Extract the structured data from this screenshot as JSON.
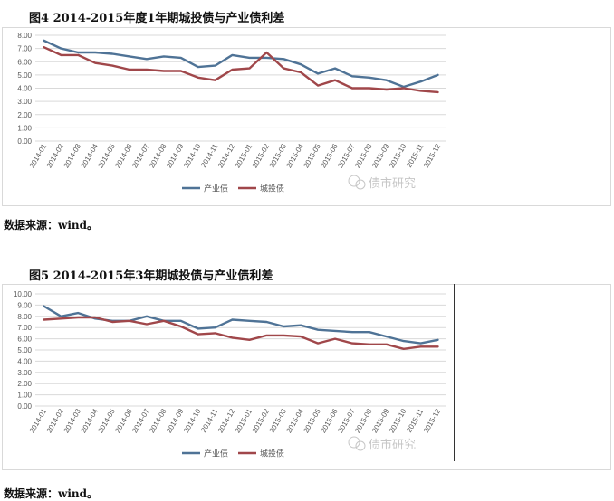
{
  "figures": [
    {
      "title": "图4 2014-2015年度1年期城投债与产业债利差",
      "source": "数据来源：wind。"
    },
    {
      "title": "图5 2014-2015年3年期城投债与产业债利差",
      "source": "数据来源：wind。"
    }
  ],
  "watermark": "债市研究",
  "colors": {
    "industrial": "#4f7396",
    "urban": "#a0474a",
    "grid": "#d9d9d9",
    "axis_text": "#595959"
  },
  "chart_data": [
    {
      "type": "line",
      "title": "图4 2014-2015年度1年期城投债与产业债利差",
      "categories": [
        "2014-01",
        "2014-02",
        "2014-03",
        "2014-04",
        "2014-05",
        "2014-06",
        "2014-07",
        "2014-08",
        "2014-09",
        "2014-10",
        "2014-11",
        "2014-12",
        "2015-01",
        "2015-02",
        "2015-03",
        "2015-04",
        "2015-05",
        "2015-06",
        "2015-07",
        "2015-08",
        "2015-09",
        "2015-10",
        "2015-11",
        "2015-12"
      ],
      "y_ticks": [
        "0.00",
        "1.00",
        "2.00",
        "3.00",
        "4.00",
        "5.00",
        "6.00",
        "7.00",
        "8.00"
      ],
      "ylim": [
        0,
        8
      ],
      "grid": true,
      "legend_position": "bottom",
      "series": [
        {
          "name": "产业债",
          "values": [
            7.6,
            7.0,
            6.7,
            6.7,
            6.6,
            6.4,
            6.2,
            6.4,
            6.3,
            5.6,
            5.7,
            6.5,
            6.3,
            6.3,
            6.2,
            5.8,
            5.1,
            5.5,
            4.9,
            4.8,
            4.6,
            4.1,
            4.5,
            5.0
          ]
        },
        {
          "name": "城投债",
          "values": [
            7.1,
            6.5,
            6.5,
            5.9,
            5.7,
            5.4,
            5.4,
            5.3,
            5.3,
            4.8,
            4.6,
            5.4,
            5.5,
            6.7,
            5.5,
            5.2,
            4.2,
            4.6,
            4.0,
            4.0,
            3.9,
            4.0,
            3.8,
            3.7
          ]
        }
      ]
    },
    {
      "type": "line",
      "title": "图5 2014-2015年3年期城投债与产业债利差",
      "categories": [
        "2014-01",
        "2014-02",
        "2014-03",
        "2014-04",
        "2014-05",
        "2014-06",
        "2014-07",
        "2014-08",
        "2014-09",
        "2014-10",
        "2014-11",
        "2014-12",
        "2015-01",
        "2015-02",
        "2015-03",
        "2015-04",
        "2015-05",
        "2015-06",
        "2015-07",
        "2015-08",
        "2015-09",
        "2015-10",
        "2015-11",
        "2015-12"
      ],
      "y_ticks": [
        "0.00",
        "1.00",
        "2.00",
        "3.00",
        "4.00",
        "5.00",
        "6.00",
        "7.00",
        "8.00",
        "9.00",
        "10.00"
      ],
      "ylim": [
        0,
        10
      ],
      "grid": true,
      "legend_position": "bottom",
      "series": [
        {
          "name": "产业债",
          "values": [
            8.9,
            8.0,
            8.3,
            7.8,
            7.6,
            7.6,
            8.0,
            7.6,
            7.6,
            6.9,
            7.0,
            7.7,
            7.6,
            7.5,
            7.1,
            7.2,
            6.8,
            6.7,
            6.6,
            6.6,
            6.2,
            5.8,
            5.6,
            5.9
          ]
        },
        {
          "name": "城投债",
          "values": [
            7.7,
            7.8,
            7.9,
            7.9,
            7.5,
            7.6,
            7.3,
            7.6,
            7.1,
            6.4,
            6.5,
            6.1,
            5.9,
            6.3,
            6.3,
            6.2,
            5.6,
            6.0,
            5.6,
            5.5,
            5.5,
            5.1,
            5.3,
            5.3
          ]
        }
      ]
    }
  ]
}
